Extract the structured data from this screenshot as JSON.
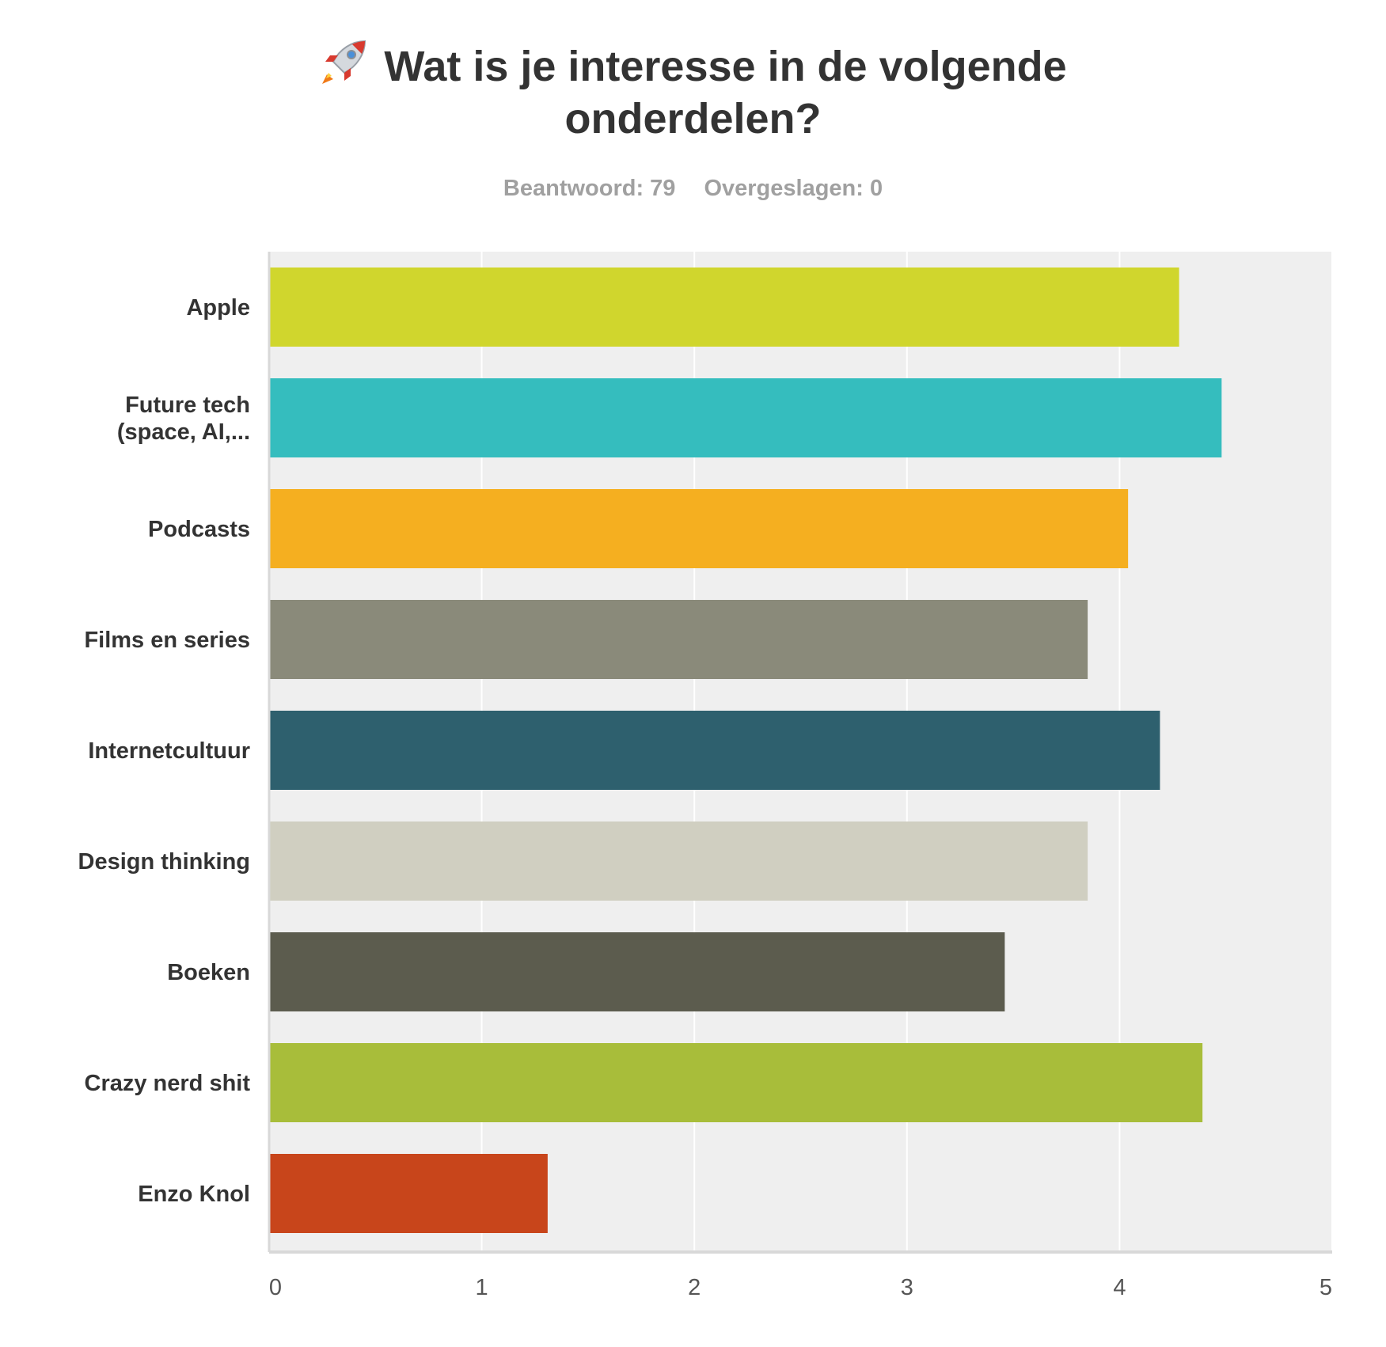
{
  "header": {
    "title_line1": "Wat is je interesse in de volgende",
    "title_line2": "onderdelen?",
    "title_icon": "rocket-icon",
    "answered": "Beantwoord: 79",
    "skipped": "Overgeslagen: 0"
  },
  "chart_data": {
    "type": "bar",
    "orientation": "horizontal",
    "title": "Wat is je interesse in de volgende onderdelen?",
    "subtitle": "Beantwoord: 79    Overgeslagen: 0",
    "xlabel": "",
    "ylabel": "",
    "xlim": [
      0,
      5
    ],
    "xticks": [
      "0",
      "1",
      "2",
      "3",
      "4",
      "5"
    ],
    "grid": true,
    "legend": "none",
    "background_color": "#efefef",
    "categories": [
      [
        "Apple"
      ],
      [
        "Future tech",
        "(space, AI,..."
      ],
      [
        "Podcasts"
      ],
      [
        "Films en series"
      ],
      [
        "Internetcultuur"
      ],
      [
        "Design thinking"
      ],
      [
        "Boeken"
      ],
      [
        "Crazy nerd shit"
      ],
      [
        "Enzo Knol"
      ]
    ],
    "values": [
      4.28,
      4.48,
      4.04,
      3.85,
      4.19,
      3.85,
      3.46,
      4.39,
      1.31
    ],
    "colors": [
      "#d0d62d",
      "#35bdbe",
      "#f5af20",
      "#8a8a7a",
      "#2e606e",
      "#d0cfc1",
      "#5c5c4e",
      "#a8bd3a",
      "#c8451b"
    ]
  }
}
